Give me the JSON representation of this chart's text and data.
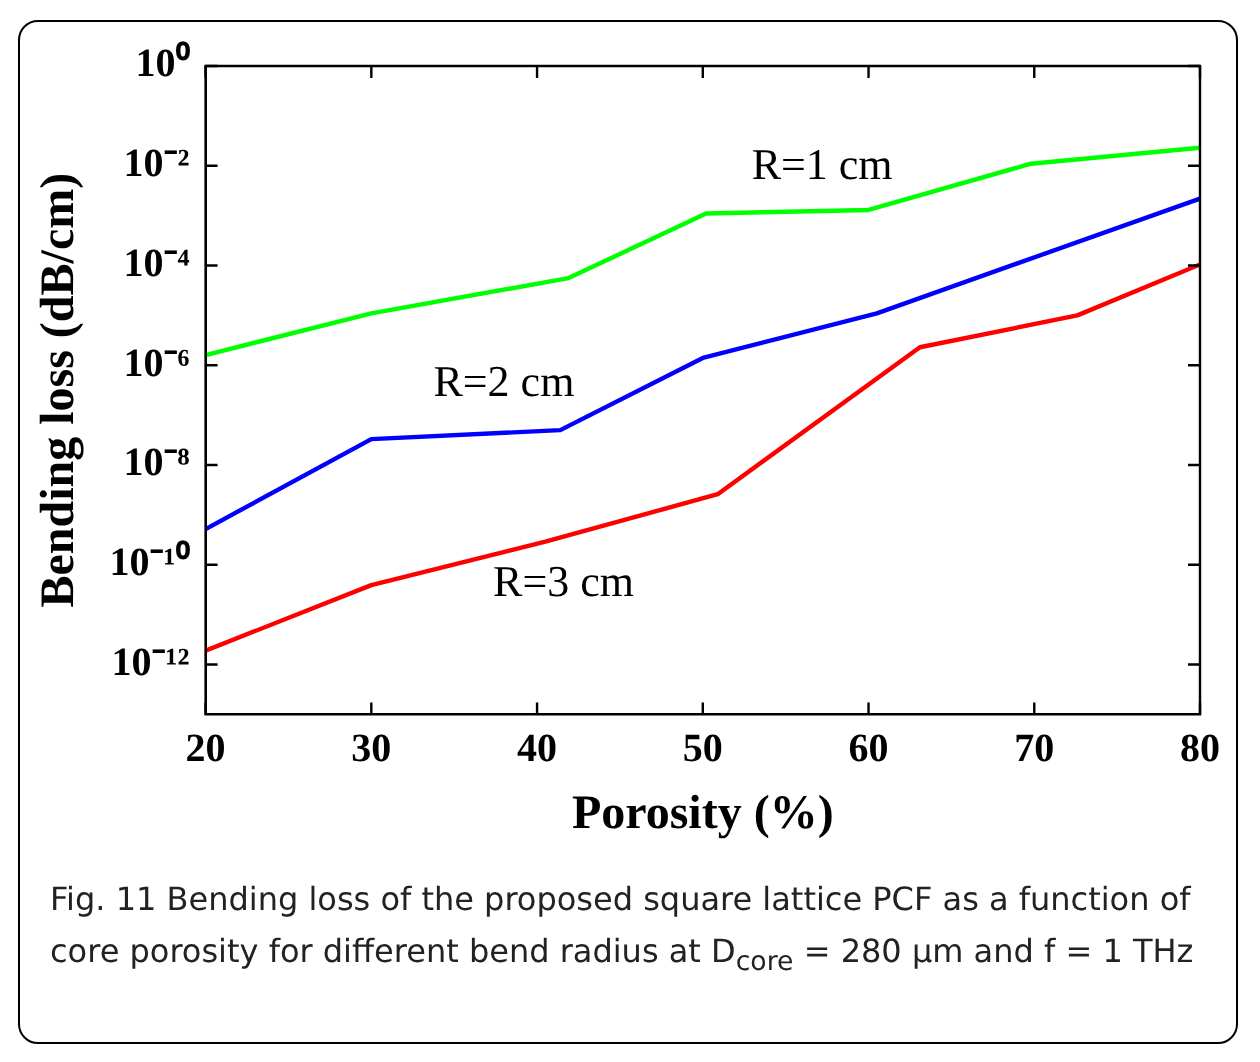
{
  "chart_data": {
    "type": "line",
    "xlabel": "Porosity (%)",
    "ylabel": "Bending loss (dB/cm)",
    "log": "y",
    "grid": false,
    "legend": false,
    "marker": "none",
    "line_style": "solid",
    "xlim": [
      20,
      80
    ],
    "xticks": [
      20,
      30,
      40,
      50,
      60,
      70,
      80
    ],
    "ylim": [
      1e-13,
      1
    ],
    "yticks": [
      {
        "value": 1,
        "label": "10⁰"
      },
      {
        "value": 0.01,
        "label": "10⁻²"
      },
      {
        "value": 0.0001,
        "label": "10⁻⁴"
      },
      {
        "value": 1e-06,
        "label": "10⁻⁶"
      },
      {
        "value": 1e-08,
        "label": "10⁻⁸"
      },
      {
        "value": 1e-10,
        "label": "10⁻¹⁰"
      },
      {
        "value": 1e-12,
        "label": "10⁻¹²"
      }
    ],
    "series": [
      {
        "name": "R=1 cm",
        "color": "#00ff00",
        "x": [
          20,
          30,
          41.9,
          50.2,
          60,
          69.8,
          80
        ],
        "values": [
          1.6e-06,
          1.1e-05,
          5.6e-05,
          0.0011,
          0.0013,
          0.011,
          0.023
        ]
      },
      {
        "name": "R=2 cm",
        "color": "#0000ff",
        "x": [
          20,
          30,
          41.4,
          50,
          60.5,
          80
        ],
        "values": [
          5.2e-10,
          3.3e-08,
          5e-08,
          1.4e-06,
          1.1e-05,
          0.0022
        ]
      },
      {
        "name": "R=3 cm",
        "color": "#ff0000",
        "x": [
          20,
          30,
          40.5,
          50.9,
          63.1,
          72.6,
          80
        ],
        "values": [
          1.9e-12,
          3.9e-11,
          2.9e-10,
          2.6e-09,
          2.3e-06,
          1e-05,
          0.000105
        ]
      }
    ],
    "annotations": [
      "Fig. 11 Bending loss of the proposed square lattice PCF as a function of core porosity for different bend radius at D$_{core}$ = 280 µm and f = 1 THz"
    ]
  }
}
